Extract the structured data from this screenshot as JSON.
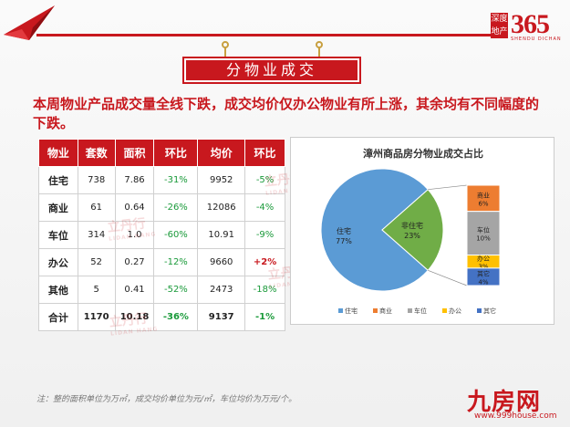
{
  "logo": {
    "cell_a": "深度地产",
    "number": "365",
    "sub": "SHENDU DICHAN"
  },
  "banner": {
    "title": "分物业成交"
  },
  "headline": "本周物业产品成交量全线下跌，成交均价仅办公物业有所上涨，其余均有不同幅度的下跌。",
  "table": {
    "headers": [
      "物业",
      "套数",
      "面积",
      "环比",
      "均价",
      "环比"
    ],
    "rows": [
      {
        "cat": "住宅",
        "count": "738",
        "area": "7.86",
        "area_mom": "-31%",
        "price": "9952",
        "price_mom": "-5%"
      },
      {
        "cat": "商业",
        "count": "61",
        "area": "0.64",
        "area_mom": "-26%",
        "price": "12086",
        "price_mom": "-4%"
      },
      {
        "cat": "车位",
        "count": "314",
        "area": "1.0",
        "area_mom": "-60%",
        "price": "10.91",
        "price_mom": "-9%"
      },
      {
        "cat": "办公",
        "count": "52",
        "area": "0.27",
        "area_mom": "-12%",
        "price": "9660",
        "price_mom": "+2%"
      },
      {
        "cat": "其他",
        "count": "5",
        "area": "0.41",
        "area_mom": "-52%",
        "price": "2473",
        "price_mom": "-18%"
      }
    ],
    "total": {
      "cat": "合计",
      "count": "1170",
      "area": "10.18",
      "area_mom": "-36%",
      "price": "9137",
      "price_mom": "-1%"
    }
  },
  "chart_data": {
    "type": "pie",
    "title": "漳州商品房分物业成交占比",
    "slices": [
      {
        "name": "住宅",
        "value": 77,
        "color": "#5b9bd5"
      },
      {
        "name": "非住宅",
        "value": 23,
        "color": "#70ad47"
      }
    ],
    "breakdown": {
      "of": "非住宅",
      "items": [
        {
          "name": "商业",
          "value": 6,
          "color": "#ed7d31"
        },
        {
          "name": "车位",
          "value": 10,
          "color": "#a5a5a5"
        },
        {
          "name": "办公",
          "value": 3,
          "color": "#ffc000"
        },
        {
          "name": "其它",
          "value": 4,
          "color": "#4472c4"
        }
      ]
    },
    "legend": {
      "placement": "bottom",
      "items": [
        {
          "name": "住宅",
          "color": "#5b9bd5"
        },
        {
          "name": "商业",
          "color": "#ed7d31"
        },
        {
          "name": "车位",
          "color": "#a5a5a5"
        },
        {
          "name": "办公",
          "color": "#ffc000"
        },
        {
          "name": "其它",
          "color": "#4472c4"
        }
      ]
    }
  },
  "footnote": "注：整的面积单位为万㎡，成交均价单位为元/㎡，车位均价为万元/个。",
  "watermark": {
    "text": "立丹行",
    "sub": "LIDAN HANG"
  },
  "brand": {
    "name": "九房网",
    "url": "www.999house.com"
  },
  "colors": {
    "accent": "#c8181e",
    "negative": "#1a9a3a"
  }
}
